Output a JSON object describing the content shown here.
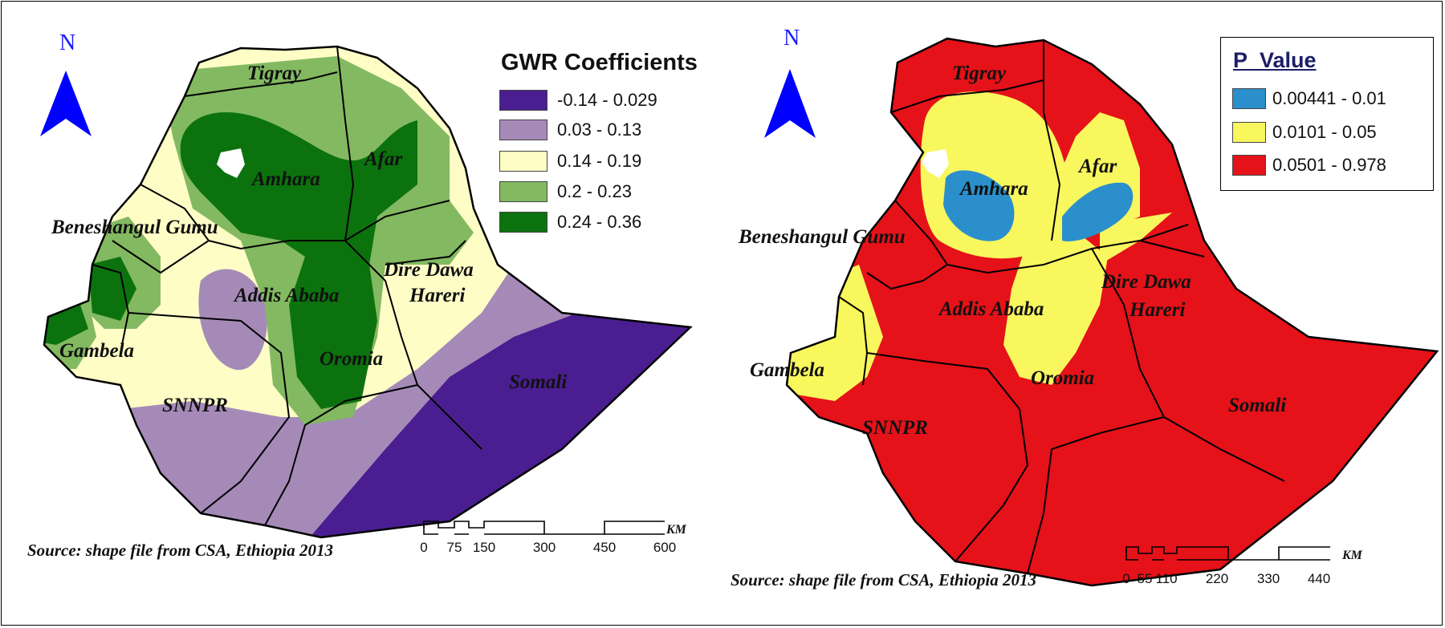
{
  "north_label": "N",
  "left_map": {
    "legend": {
      "title": "GWR Coefficients",
      "items": [
        {
          "label": "-0.14 - 0.029",
          "color": "#4a1e91"
        },
        {
          "label": "0.03 - 0.13",
          "color": "#a58ab8"
        },
        {
          "label": "0.14 - 0.19",
          "color": "#fefdc6"
        },
        {
          "label": "0.2 - 0.23",
          "color": "#83b961"
        },
        {
          "label": "0.24 - 0.36",
          "color": "#0c720e"
        }
      ]
    },
    "regions": [
      "Tigray",
      "Afar",
      "Amhara",
      "Beneshangul Gumu",
      "Dire Dawa",
      "Hareri",
      "Addis Ababa",
      "Gambela",
      "Oromia",
      "SNNPR",
      "Somali"
    ],
    "source": "Source: shape file from CSA, Ethiopia 2013",
    "scale": {
      "unit": "KM",
      "ticks": [
        "0",
        "75",
        "150",
        "300",
        "450",
        "600"
      ]
    }
  },
  "right_map": {
    "legend": {
      "title": "P_Value",
      "items": [
        {
          "label": "0.00441 - 0.01",
          "color": "#2b8fcb"
        },
        {
          "label": "0.0101 - 0.05",
          "color": "#f8f75e"
        },
        {
          "label": "0.0501 - 0.978",
          "color": "#e51219"
        }
      ]
    },
    "regions": [
      "Tigray",
      "Afar",
      "Amhara",
      "Beneshangul Gumu",
      "Dire Dawa",
      "Hareri",
      "Addis Ababa",
      "Gambela",
      "Oromia",
      "SNNPR",
      "Somali"
    ],
    "source": "Source: shape file from CSA, Ethiopia 2013",
    "scale": {
      "unit": "KM",
      "ticks": [
        "0",
        "55",
        "110",
        "220",
        "330",
        "440"
      ]
    }
  }
}
